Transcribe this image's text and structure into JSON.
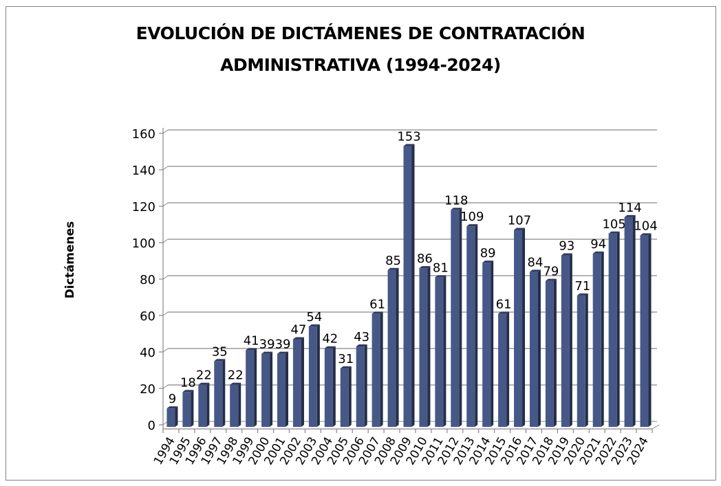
{
  "chart_data": {
    "type": "bar",
    "title_lines": [
      "EVOLUCIÓN DE DICTÁMENES DE CONTRATACIÓN",
      "ADMINISTRATIVA (1994-2024)"
    ],
    "xlabel": "",
    "ylabel": "Dictámenes",
    "ylim": [
      0,
      160
    ],
    "yticks": [
      0,
      20,
      40,
      60,
      80,
      100,
      120,
      140,
      160
    ],
    "grid": true,
    "legend": "none",
    "style": "3d-column",
    "bar_color": "#465887",
    "bar_side_color": "#252e47",
    "categories": [
      "1994",
      "1995",
      "1996",
      "1997",
      "1998",
      "1999",
      "2000",
      "2001",
      "2002",
      "2003",
      "2004",
      "2005",
      "2006",
      "2007",
      "2008",
      "2009",
      "2010",
      "2011",
      "2012",
      "2013",
      "2014",
      "2015",
      "2016",
      "2017",
      "2018",
      "2019",
      "2020",
      "2021",
      "2022",
      "2023",
      "2024"
    ],
    "values": [
      9,
      18,
      22,
      35,
      22,
      41,
      39,
      39,
      47,
      54,
      42,
      31,
      43,
      61,
      85,
      153,
      86,
      81,
      118,
      109,
      89,
      61,
      107,
      84,
      79,
      93,
      71,
      94,
      105,
      114,
      104
    ]
  }
}
